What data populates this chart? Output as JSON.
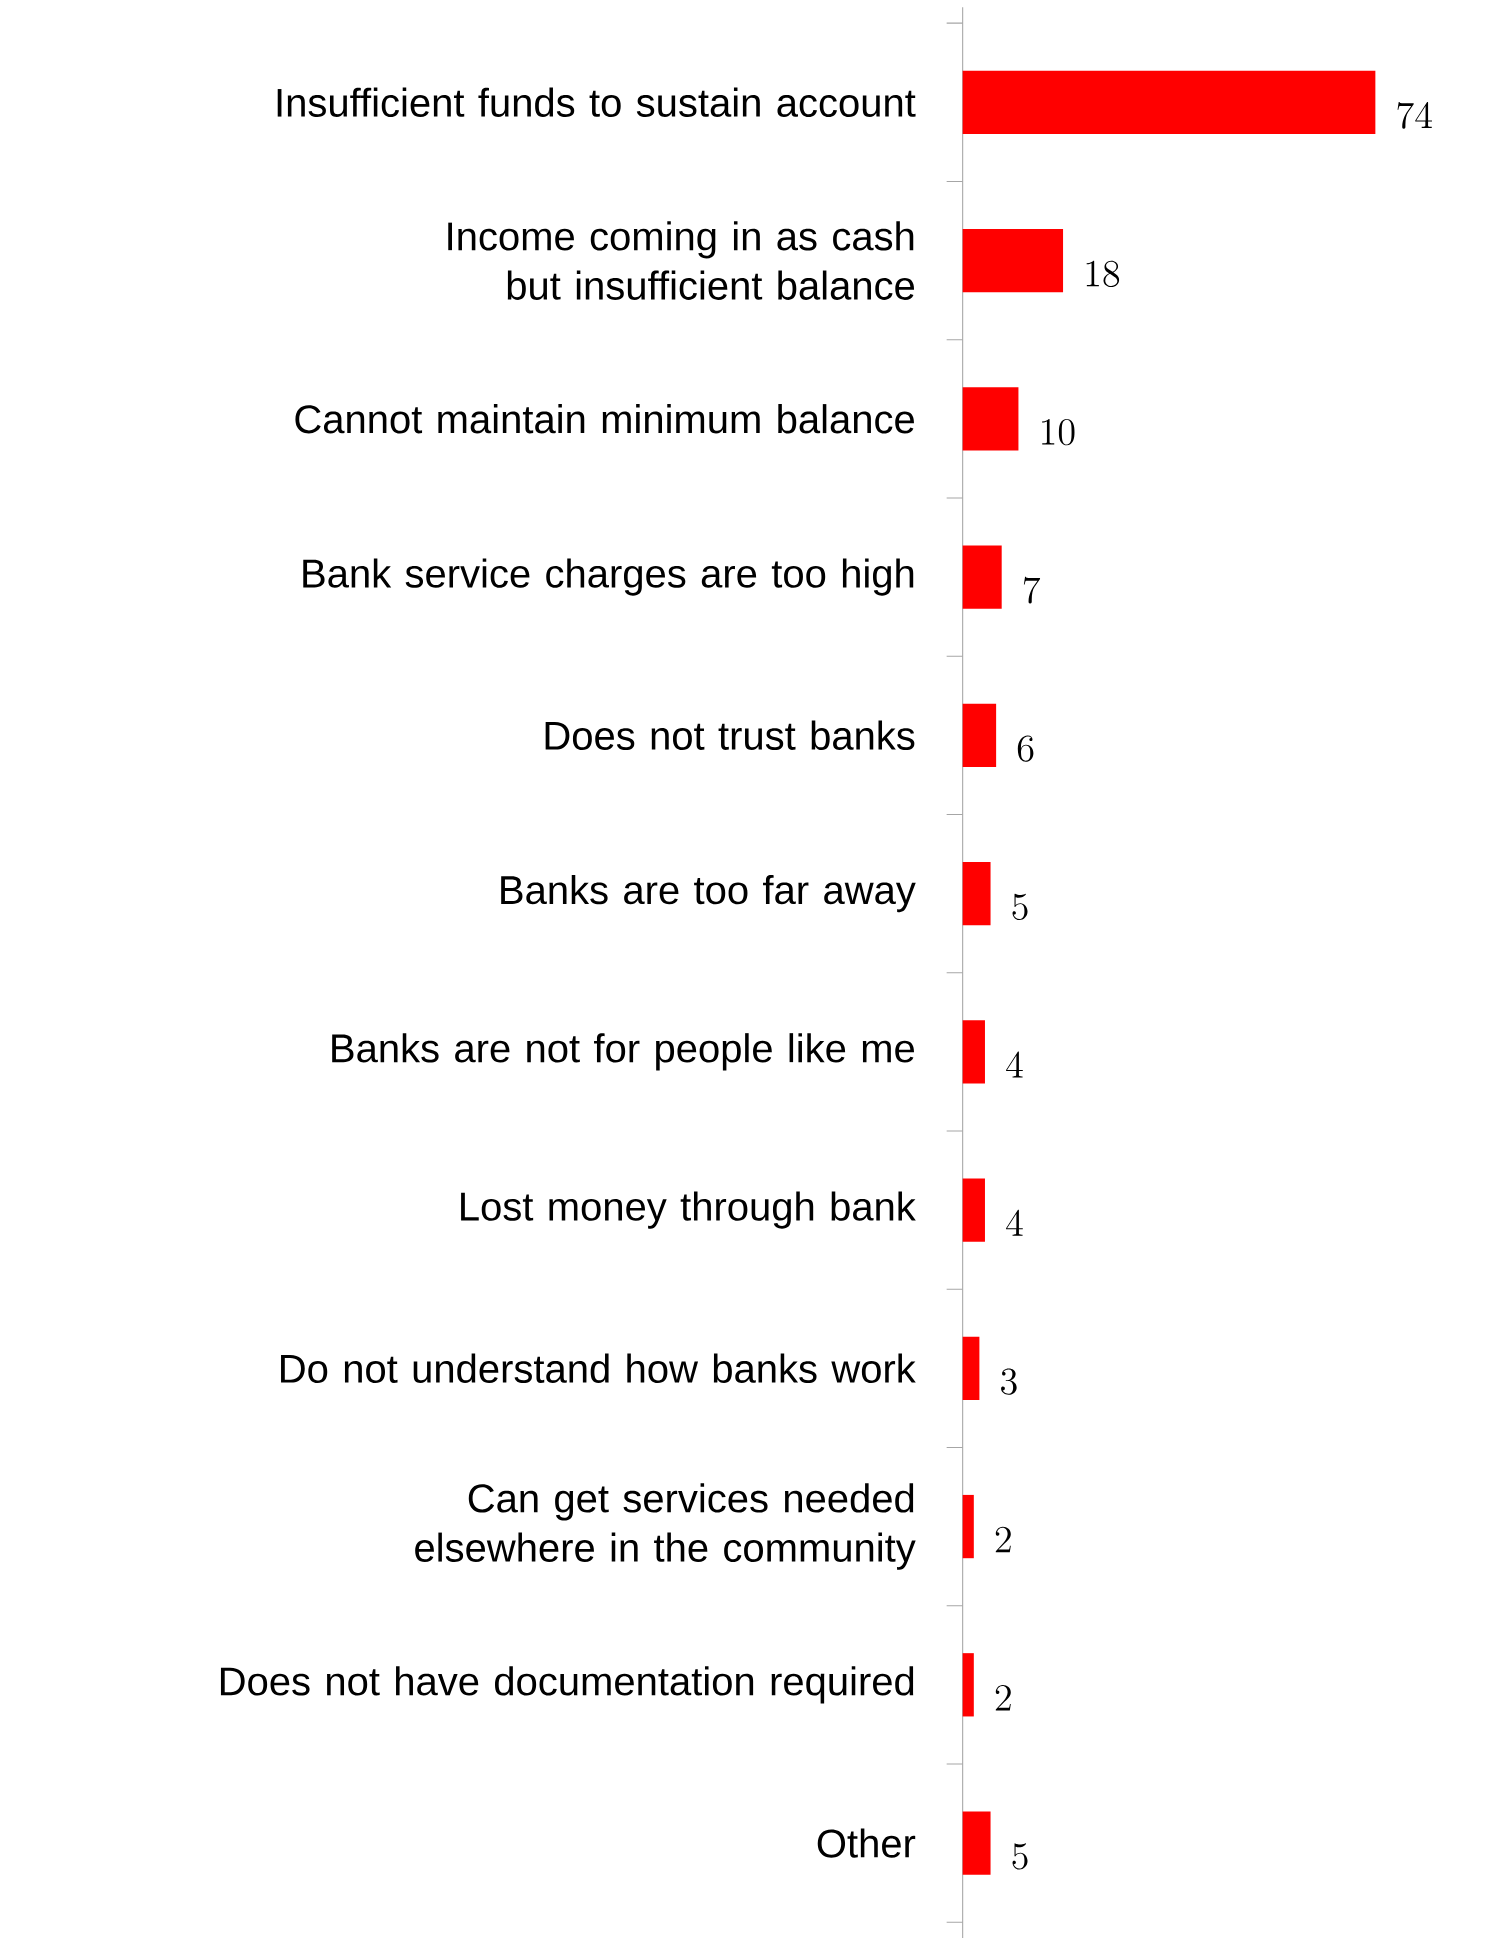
{
  "chart_data": {
    "type": "bar",
    "orientation": "horizontal",
    "data_labels": true,
    "color": "#ff0000",
    "categories": [
      "Insufficient funds to sustain account",
      "Income coming in as cash but insufficient balance",
      "Cannot maintain minimum balance",
      "Bank service charges are too high",
      "Does not trust banks",
      "Banks are too far away",
      "Banks are not for people like me",
      "Lost money through bank",
      "Do not understand how banks work",
      "Can get services needed elsewhere in the community",
      "Does not have documentation required",
      "Other"
    ],
    "values": [
      74,
      18,
      10,
      7,
      6,
      5,
      4,
      4,
      3,
      2,
      2,
      5
    ]
  }
}
